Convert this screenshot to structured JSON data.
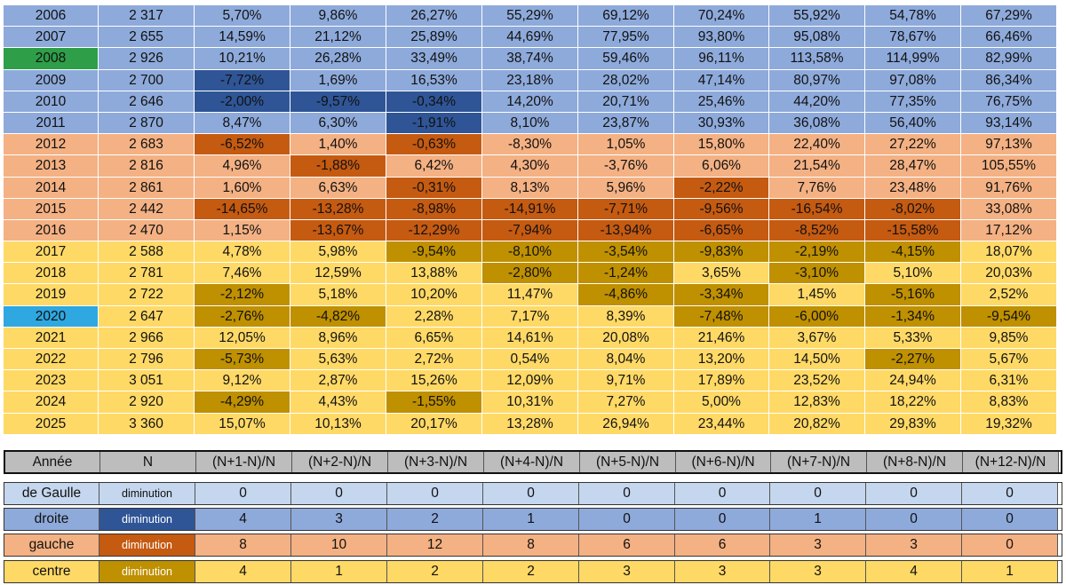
{
  "colors": {
    "blue": "#8eaadb",
    "blue_dark": "#2f5597",
    "orange": "#f4b183",
    "orange_dark": "#c55a11",
    "yellow": "#ffd966",
    "yellow_dark": "#bf9000",
    "green": "#2e9e48",
    "cyan": "#2fa7e0",
    "gray": "#bdbdbd",
    "pale_blue": "#c5d7ee"
  },
  "rows": [
    {
      "year": "2006",
      "n": "2 317",
      "v": [
        "5,70%",
        "9,86%",
        "26,27%",
        "55,29%",
        "69,12%",
        "70,24%",
        "55,92%",
        "54,78%",
        "67,29%"
      ],
      "bg": "blue",
      "dark": [],
      "year_bg": ""
    },
    {
      "year": "2007",
      "n": "2 655",
      "v": [
        "14,59%",
        "21,12%",
        "25,89%",
        "44,69%",
        "77,95%",
        "93,80%",
        "95,08%",
        "78,67%",
        "66,46%"
      ],
      "bg": "blue",
      "dark": [],
      "year_bg": ""
    },
    {
      "year": "2008",
      "n": "2 926",
      "v": [
        "10,21%",
        "26,28%",
        "33,49%",
        "38,74%",
        "59,46%",
        "96,11%",
        "113,58%",
        "114,99%",
        "82,99%"
      ],
      "bg": "blue",
      "dark": [],
      "year_bg": "green"
    },
    {
      "year": "2009",
      "n": "2 700",
      "v": [
        "-7,72%",
        "1,69%",
        "16,53%",
        "23,18%",
        "28,02%",
        "47,14%",
        "80,97%",
        "97,08%",
        "86,34%"
      ],
      "bg": "blue",
      "dark": [
        0
      ],
      "year_bg": ""
    },
    {
      "year": "2010",
      "n": "2 646",
      "v": [
        "-2,00%",
        "-9,57%",
        "-0,34%",
        "14,20%",
        "20,71%",
        "25,46%",
        "44,20%",
        "77,35%",
        "76,75%"
      ],
      "bg": "blue",
      "dark": [
        0,
        1,
        2
      ],
      "year_bg": ""
    },
    {
      "year": "2011",
      "n": "2 870",
      "v": [
        "8,47%",
        "6,30%",
        "-1,91%",
        "8,10%",
        "23,87%",
        "30,93%",
        "36,08%",
        "56,40%",
        "93,14%"
      ],
      "bg": "blue",
      "dark": [
        2
      ],
      "year_bg": ""
    },
    {
      "year": "2012",
      "n": "2 683",
      "v": [
        "-6,52%",
        "1,40%",
        "-0,63%",
        "-8,30%",
        "1,05%",
        "15,80%",
        "22,40%",
        "27,22%",
        "97,13%"
      ],
      "bg": "orange",
      "dark": [
        0,
        2
      ],
      "year_bg": ""
    },
    {
      "year": "2013",
      "n": "2 816",
      "v": [
        "4,96%",
        "-1,88%",
        "6,42%",
        "4,30%",
        "-3,76%",
        "6,06%",
        "21,54%",
        "28,47%",
        "105,55%"
      ],
      "bg": "orange",
      "dark": [
        1
      ],
      "year_bg": ""
    },
    {
      "year": "2014",
      "n": "2 861",
      "v": [
        "1,60%",
        "6,63%",
        "-0,31%",
        "8,13%",
        "5,96%",
        "-2,22%",
        "7,76%",
        "23,48%",
        "91,76%"
      ],
      "bg": "orange",
      "dark": [
        2,
        5
      ],
      "year_bg": ""
    },
    {
      "year": "2015",
      "n": "2 442",
      "v": [
        "-14,65%",
        "-13,28%",
        "-8,98%",
        "-14,91%",
        "-7,71%",
        "-9,56%",
        "-16,54%",
        "-8,02%",
        "33,08%"
      ],
      "bg": "orange",
      "dark": [
        0,
        1,
        2,
        3,
        4,
        5,
        6,
        7
      ],
      "year_bg": ""
    },
    {
      "year": "2016",
      "n": "2 470",
      "v": [
        "1,15%",
        "-13,67%",
        "-12,29%",
        "-7,94%",
        "-13,94%",
        "-6,65%",
        "-8,52%",
        "-15,58%",
        "17,12%"
      ],
      "bg": "orange",
      "dark": [
        1,
        2,
        3,
        4,
        5,
        6,
        7
      ],
      "year_bg": ""
    },
    {
      "year": "2017",
      "n": "2 588",
      "v": [
        "4,78%",
        "5,98%",
        "-9,54%",
        "-8,10%",
        "-3,54%",
        "-9,83%",
        "-2,19%",
        "-4,15%",
        "18,07%"
      ],
      "bg": "yellow",
      "dark": [
        2,
        3,
        4,
        5,
        6,
        7
      ],
      "year_bg": ""
    },
    {
      "year": "2018",
      "n": "2 781",
      "v": [
        "7,46%",
        "12,59%",
        "13,88%",
        "-2,80%",
        "-1,24%",
        "3,65%",
        "-3,10%",
        "5,10%",
        "20,03%"
      ],
      "bg": "yellow",
      "dark": [
        3,
        4,
        6
      ],
      "year_bg": ""
    },
    {
      "year": "2019",
      "n": "2 722",
      "v": [
        "-2,12%",
        "5,18%",
        "10,20%",
        "11,47%",
        "-4,86%",
        "-3,34%",
        "1,45%",
        "-5,16%",
        "2,52%"
      ],
      "bg": "yellow",
      "dark": [
        0,
        4,
        5,
        7
      ],
      "year_bg": ""
    },
    {
      "year": "2020",
      "n": "2 647",
      "v": [
        "-2,76%",
        "-4,82%",
        "2,28%",
        "7,17%",
        "8,39%",
        "-7,48%",
        "-6,00%",
        "-1,34%",
        "-9,54%"
      ],
      "bg": "yellow",
      "dark": [
        0,
        1,
        5,
        6,
        7,
        8
      ],
      "year_bg": "cyan"
    },
    {
      "year": "2021",
      "n": "2 966",
      "v": [
        "12,05%",
        "8,96%",
        "6,65%",
        "14,61%",
        "20,08%",
        "21,46%",
        "3,67%",
        "5,33%",
        "9,85%"
      ],
      "bg": "yellow",
      "dark": [],
      "year_bg": ""
    },
    {
      "year": "2022",
      "n": "2 796",
      "v": [
        "-5,73%",
        "5,63%",
        "2,72%",
        "0,54%",
        "8,04%",
        "13,20%",
        "14,50%",
        "-2,27%",
        "5,67%"
      ],
      "bg": "yellow",
      "dark": [
        0,
        7
      ],
      "year_bg": ""
    },
    {
      "year": "2023",
      "n": "3 051",
      "v": [
        "9,12%",
        "2,87%",
        "15,26%",
        "12,09%",
        "9,71%",
        "17,89%",
        "23,52%",
        "24,94%",
        "6,31%"
      ],
      "bg": "yellow",
      "dark": [],
      "year_bg": ""
    },
    {
      "year": "2024",
      "n": "2 920",
      "v": [
        "-4,29%",
        "4,43%",
        "-1,55%",
        "10,31%",
        "7,27%",
        "5,00%",
        "12,83%",
        "18,22%",
        "8,83%"
      ],
      "bg": "yellow",
      "dark": [
        0,
        2
      ],
      "year_bg": ""
    },
    {
      "year": "2025",
      "n": "3 360",
      "v": [
        "15,07%",
        "10,13%",
        "20,17%",
        "13,28%",
        "26,94%",
        "23,44%",
        "20,82%",
        "29,83%",
        "19,32%"
      ],
      "bg": "yellow",
      "dark": [],
      "year_bg": ""
    }
  ],
  "header": [
    "Année",
    "N",
    "(N+1-N)/N",
    "(N+2-N)/N",
    "(N+3-N)/N",
    "(N+4-N)/N",
    "(N+5-N)/N",
    "(N+6-N)/N",
    "(N+7-N)/N",
    "(N+8-N)/N",
    "(N+12-N)/N"
  ],
  "summary": [
    {
      "name": "de Gaulle",
      "label": "diminution",
      "counts": [
        "0",
        "0",
        "0",
        "0",
        "0",
        "0",
        "0",
        "0",
        "0"
      ],
      "bg": "pale_blue",
      "label_bg": "pale_blue"
    },
    {
      "name": "droite",
      "label": "diminution",
      "counts": [
        "4",
        "3",
        "2",
        "1",
        "0",
        "0",
        "1",
        "0",
        "0"
      ],
      "bg": "blue",
      "label_bg": "blue_dark"
    },
    {
      "name": "gauche",
      "label": "diminution",
      "counts": [
        "8",
        "10",
        "12",
        "8",
        "6",
        "6",
        "3",
        "3",
        "0"
      ],
      "bg": "orange",
      "label_bg": "orange_dark"
    },
    {
      "name": "centre",
      "label": "diminution",
      "counts": [
        "4",
        "1",
        "2",
        "2",
        "3",
        "3",
        "3",
        "4",
        "1"
      ],
      "bg": "yellow",
      "label_bg": "yellow_dark"
    }
  ]
}
